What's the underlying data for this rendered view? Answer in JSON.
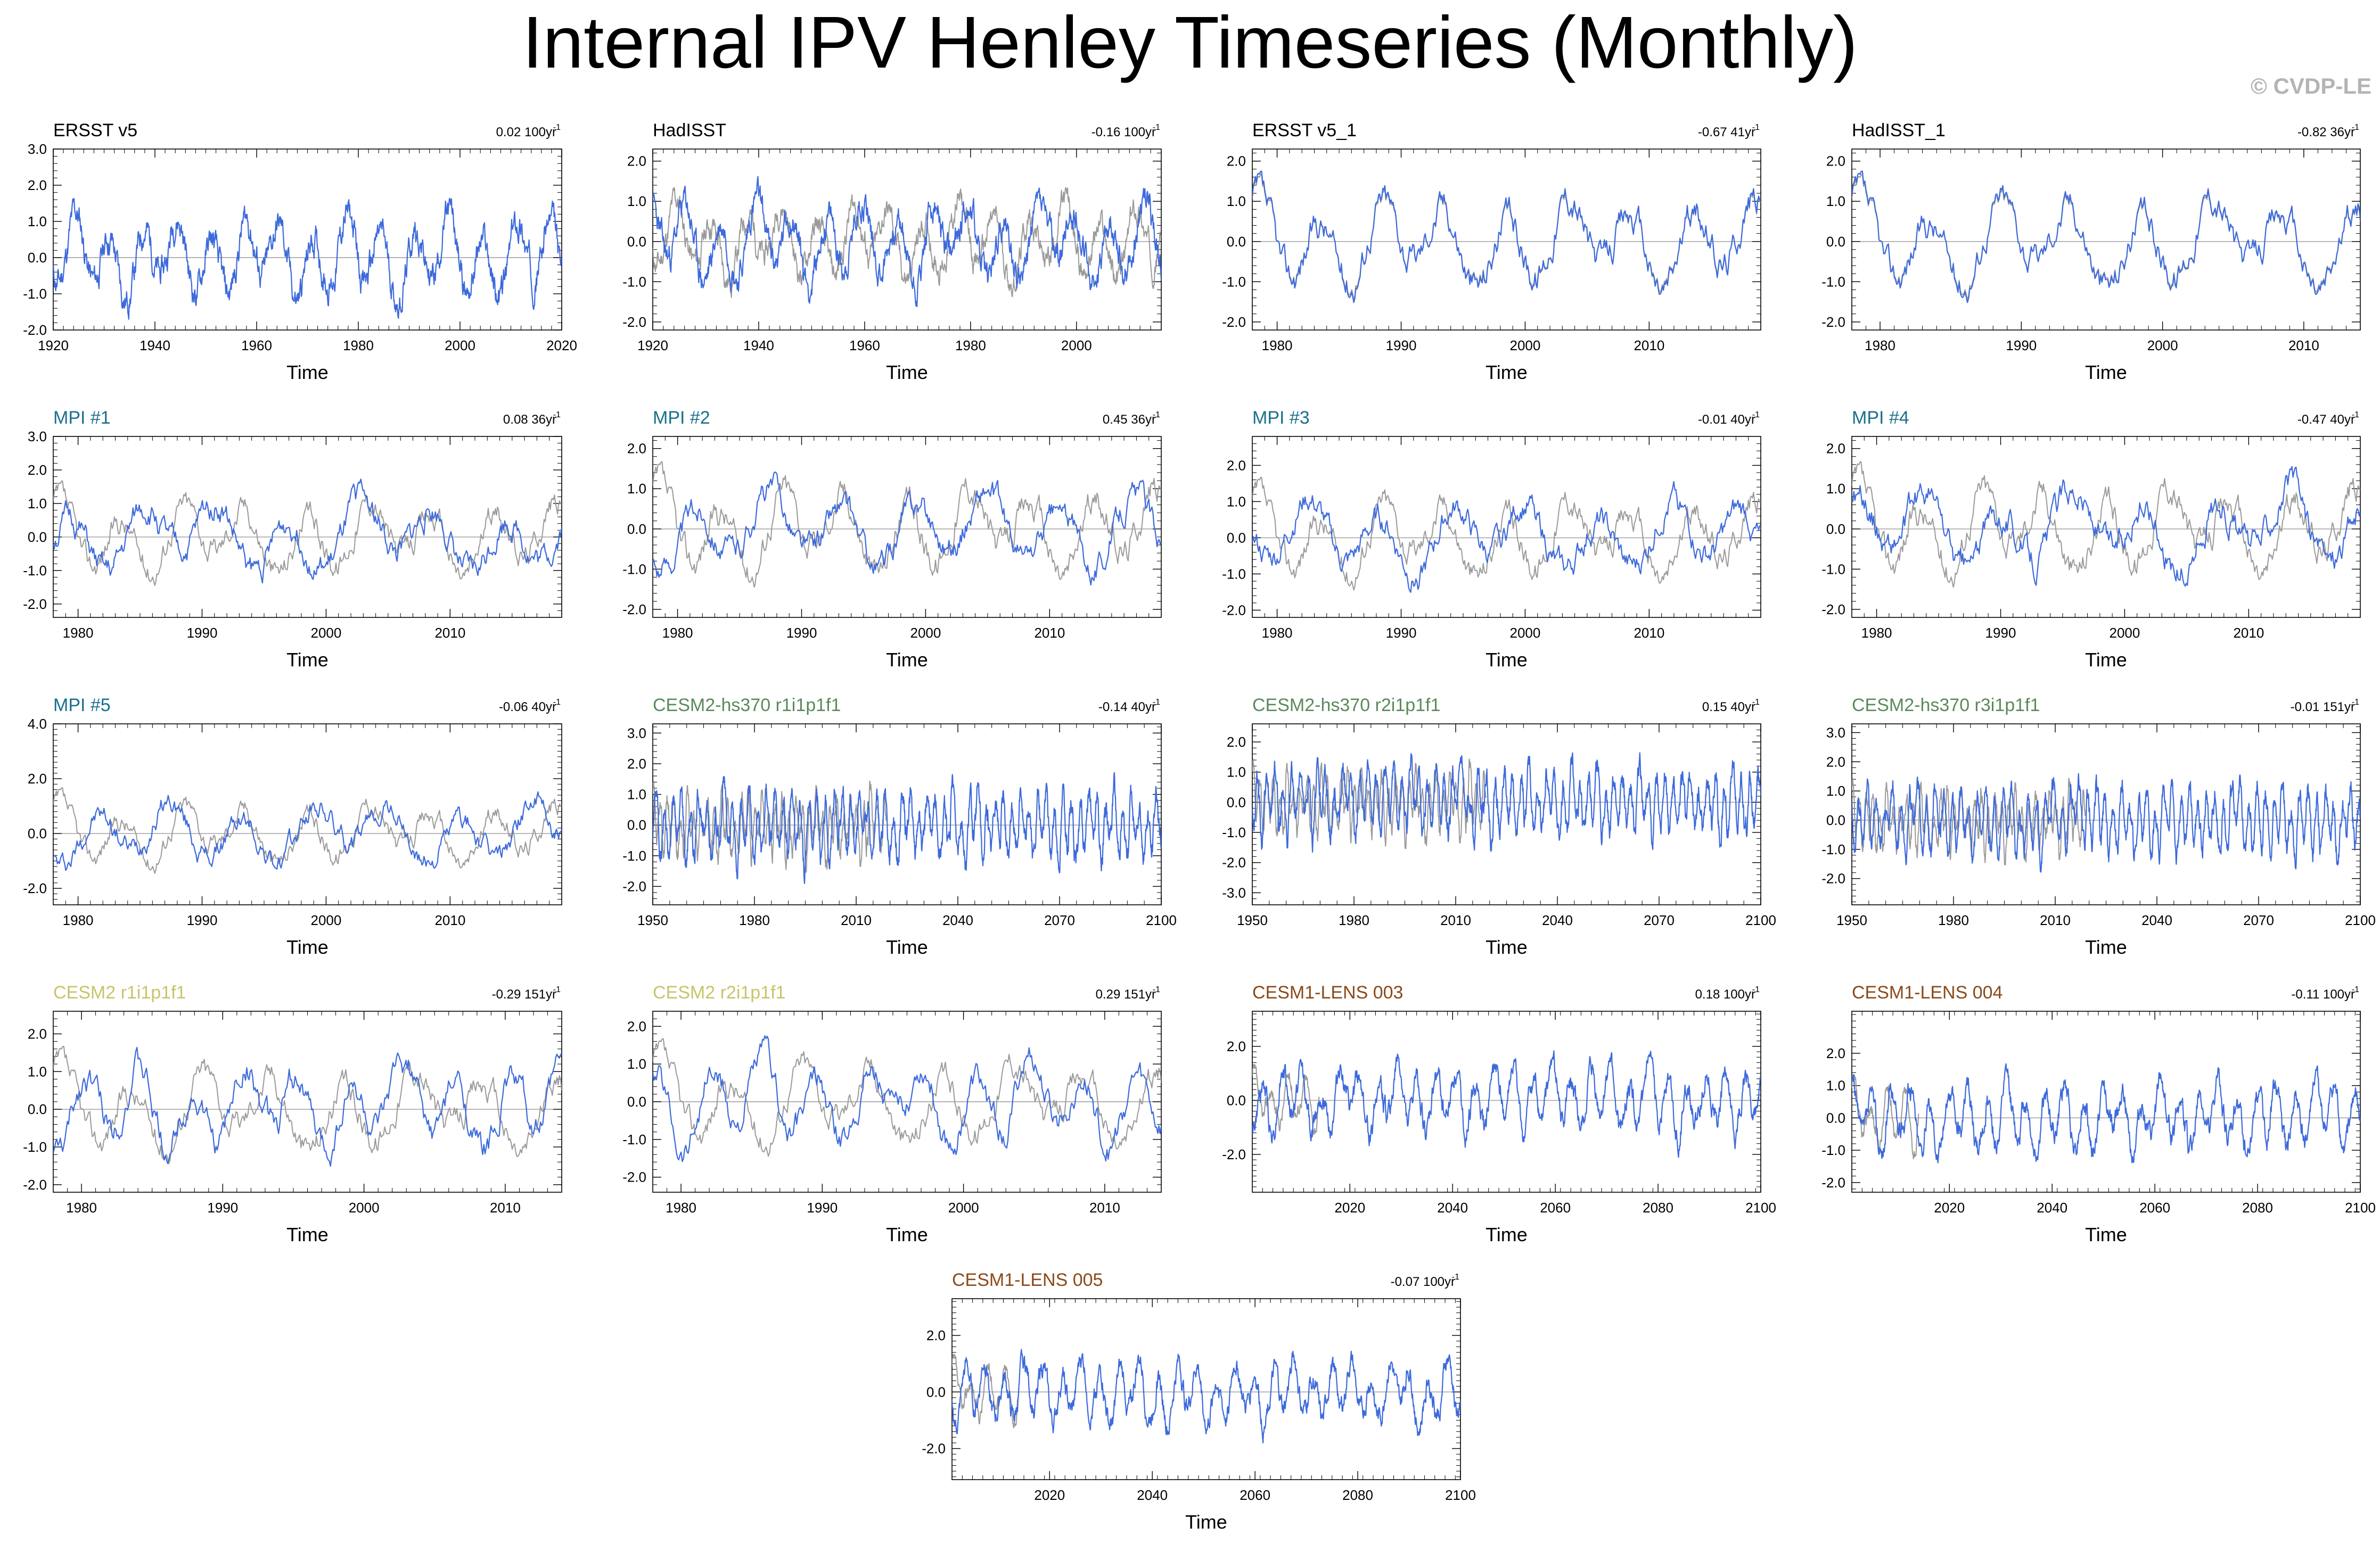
{
  "title": "Internal IPV Henley Timeseries (Monthly)",
  "copyright": "© CVDP-LE",
  "colors": {
    "model": "#3d6adb",
    "obs": "#9a9a9a",
    "zero": "#9a9a9a",
    "obs_title": "#000000",
    "mpi": "#1a6f8c",
    "cesm2hs": "#5a8a5a",
    "cesm2": "#c9c46a",
    "cesm1": "#8a4a1a"
  },
  "chart_data": [
    {
      "type": "line",
      "title": "ERSST v5",
      "title_color": "#000000",
      "trend": "0.02 100yr",
      "trend_sup": "-1",
      "xlabel": "Time",
      "xlim": [
        1920,
        2020
      ],
      "xticks": [
        1920,
        1940,
        1960,
        1980,
        2000,
        2020
      ],
      "ylim": [
        -2.0,
        3.0
      ],
      "yticks": [
        3.0,
        2.0,
        1.0,
        0.0,
        -1.0,
        -2.0
      ],
      "ytick_labels": [
        "3.0",
        "2.0",
        "1.0",
        "0.0",
        "-1.0",
        "-2.0"
      ],
      "x_start": 1920,
      "x_end": 2020,
      "amplitude": 1.1,
      "period_months": 80,
      "seed": 11,
      "obs_overlay": false
    },
    {
      "type": "line",
      "title": "HadISST",
      "title_color": "#000000",
      "trend": "-0.16 100yr",
      "trend_sup": "-1",
      "xlabel": "Time",
      "xlim": [
        1920,
        2016
      ],
      "xticks": [
        1920,
        1940,
        1960,
        1980,
        2000
      ],
      "ylim": [
        -2.2,
        2.3
      ],
      "yticks": [
        2.0,
        1.0,
        0.0,
        -1.0,
        -2.0
      ],
      "ytick_labels": [
        "2.0",
        "1.0",
        "0.0",
        "-1.0",
        "-2.0"
      ],
      "x_start": 1920,
      "x_end": 2016,
      "amplitude": 1.0,
      "period_months": 80,
      "seed": 23,
      "obs_overlay": true,
      "obs_seed": 11,
      "obs_period_months": 80,
      "obs_amplitude": 0.9
    },
    {
      "type": "line",
      "title": "ERSST v5_1",
      "title_color": "#000000",
      "trend": "-0.67 41yr",
      "trend_sup": "-1",
      "xlabel": "Time",
      "xlim": [
        1978,
        2019
      ],
      "xticks": [
        1980,
        1990,
        2000,
        2010
      ],
      "ylim": [
        -2.2,
        2.3
      ],
      "yticks": [
        2.0,
        1.0,
        0.0,
        -1.0,
        -2.0
      ],
      "ytick_labels": [
        "2.0",
        "1.0",
        "0.0",
        "-1.0",
        "-2.0"
      ],
      "x_start": 1978,
      "x_end": 2019,
      "amplitude": 1.1,
      "period_months": 60,
      "seed": 37,
      "obs_overlay": true,
      "obs_seed": 37,
      "obs_period_months": 60,
      "obs_amplitude": 1.05
    },
    {
      "type": "line",
      "title": "HadISST_1",
      "title_color": "#000000",
      "trend": "-0.82 36yr",
      "trend_sup": "-1",
      "xlabel": "Time",
      "xlim": [
        1978,
        2014
      ],
      "xticks": [
        1980,
        1990,
        2000,
        2010
      ],
      "ylim": [
        -2.2,
        2.3
      ],
      "yticks": [
        2.0,
        1.0,
        0.0,
        -1.0,
        -2.0
      ],
      "ytick_labels": [
        "2.0",
        "1.0",
        "0.0",
        "-1.0",
        "-2.0"
      ],
      "x_start": 1978,
      "x_end": 2014,
      "amplitude": 1.1,
      "period_months": 60,
      "seed": 37,
      "obs_overlay": true,
      "obs_seed": 37,
      "obs_period_months": 60,
      "obs_amplitude": 1.05
    },
    {
      "type": "line",
      "title": "MPI #1",
      "title_color": "#1a6f8c",
      "trend": "0.08 36yr",
      "trend_sup": "-1",
      "xlabel": "Time",
      "xlim": [
        1978,
        2019
      ],
      "xticks": [
        1980,
        1990,
        2000,
        2010
      ],
      "ylim": [
        -2.4,
        3.0
      ],
      "yticks": [
        3.0,
        2.0,
        1.0,
        0.0,
        -1.0,
        -2.0
      ],
      "ytick_labels": [
        "3.0",
        "2.0",
        "1.0",
        "0.0",
        "-1.0",
        "-2.0"
      ],
      "x_start": 1978,
      "x_end": 2019,
      "amplitude": 1.1,
      "period_months": 70,
      "seed": 51,
      "obs_overlay": true,
      "obs_seed": 37,
      "obs_period_months": 60,
      "obs_amplitude": 1.05
    },
    {
      "type": "line",
      "title": "MPI #2",
      "title_color": "#1a6f8c",
      "trend": "0.45 36yr",
      "trend_sup": "-1",
      "xlabel": "Time",
      "xlim": [
        1978,
        2019
      ],
      "xticks": [
        1980,
        1990,
        2000,
        2010
      ],
      "ylim": [
        -2.2,
        2.3
      ],
      "yticks": [
        2.0,
        1.0,
        0.0,
        -1.0,
        -2.0
      ],
      "ytick_labels": [
        "2.0",
        "1.0",
        "0.0",
        "-1.0",
        "-2.0"
      ],
      "x_start": 1978,
      "x_end": 2019,
      "amplitude": 0.9,
      "period_months": 70,
      "seed": 63,
      "obs_overlay": true,
      "obs_seed": 37,
      "obs_period_months": 60,
      "obs_amplitude": 1.05
    },
    {
      "type": "line",
      "title": "MPI #3",
      "title_color": "#1a6f8c",
      "trend": "-0.01 40yr",
      "trend_sup": "-1",
      "xlabel": "Time",
      "xlim": [
        1978,
        2019
      ],
      "xticks": [
        1980,
        1990,
        2000,
        2010
      ],
      "ylim": [
        -2.2,
        2.8
      ],
      "yticks": [
        2.0,
        1.0,
        0.0,
        -1.0,
        -2.0
      ],
      "ytick_labels": [
        "2.0",
        "1.0",
        "0.0",
        "-1.0",
        "-2.0"
      ],
      "x_start": 1978,
      "x_end": 2019,
      "amplitude": 1.0,
      "period_months": 70,
      "seed": 77,
      "obs_overlay": true,
      "obs_seed": 37,
      "obs_period_months": 60,
      "obs_amplitude": 1.05
    },
    {
      "type": "line",
      "title": "MPI #4",
      "title_color": "#1a6f8c",
      "trend": "-0.47 40yr",
      "trend_sup": "-1",
      "xlabel": "Time",
      "xlim": [
        1978,
        2019
      ],
      "xticks": [
        1980,
        1990,
        2000,
        2010
      ],
      "ylim": [
        -2.2,
        2.3
      ],
      "yticks": [
        2.0,
        1.0,
        0.0,
        -1.0,
        -2.0
      ],
      "ytick_labels": [
        "2.0",
        "1.0",
        "0.0",
        "-1.0",
        "-2.0"
      ],
      "x_start": 1978,
      "x_end": 2019,
      "amplitude": 1.0,
      "period_months": 70,
      "seed": 89,
      "obs_overlay": true,
      "obs_seed": 37,
      "obs_period_months": 60,
      "obs_amplitude": 1.05
    },
    {
      "type": "line",
      "title": "MPI #5",
      "title_color": "#1a6f8c",
      "trend": "-0.06 40yr",
      "trend_sup": "-1",
      "xlabel": "Time",
      "xlim": [
        1978,
        2019
      ],
      "xticks": [
        1980,
        1990,
        2000,
        2010
      ],
      "ylim": [
        -2.6,
        4.0
      ],
      "yticks": [
        4.0,
        2.0,
        0.0,
        -2.0
      ],
      "ytick_labels": [
        "4.0",
        "2.0",
        "0.0",
        "-2.0"
      ],
      "x_start": 1978,
      "x_end": 2019,
      "amplitude": 1.1,
      "period_months": 70,
      "seed": 97,
      "obs_overlay": true,
      "obs_seed": 37,
      "obs_period_months": 60,
      "obs_amplitude": 1.05
    },
    {
      "type": "line",
      "title": "CESM2-hs370 r1i1p1f1",
      "title_color": "#5a8a5a",
      "trend": "-0.14 40yr",
      "trend_sup": "-1",
      "xlabel": "Time",
      "xlim": [
        1950,
        2100
      ],
      "xticks": [
        1950,
        1980,
        2010,
        2040,
        2070,
        2100
      ],
      "ylim": [
        -2.6,
        3.3
      ],
      "yticks": [
        3.0,
        2.0,
        1.0,
        0.0,
        -1.0,
        -2.0
      ],
      "ytick_labels": [
        "3.0",
        "2.0",
        "1.0",
        "0.0",
        "-1.0",
        "-2.0"
      ],
      "x_start": 1950,
      "x_end": 2100,
      "amplitude": 1.1,
      "period_months": 30,
      "seed": 101,
      "obs_overlay": true,
      "obs_x_end": 2019,
      "obs_seed": 37,
      "obs_period_months": 24,
      "obs_amplitude": 1.0
    },
    {
      "type": "line",
      "title": "CESM2-hs370 r2i1p1f1",
      "title_color": "#5a8a5a",
      "trend": "0.15 40yr",
      "trend_sup": "-1",
      "xlabel": "Time",
      "xlim": [
        1950,
        2100
      ],
      "xticks": [
        1950,
        1980,
        2010,
        2040,
        2070,
        2100
      ],
      "ylim": [
        -3.4,
        2.6
      ],
      "yticks": [
        2.0,
        1.0,
        0.0,
        -1.0,
        -2.0,
        -3.0
      ],
      "ytick_labels": [
        "2.0",
        "1.0",
        "0.0",
        "-1.0",
        "-2.0",
        "-3.0"
      ],
      "x_start": 1950,
      "x_end": 2100,
      "amplitude": 1.1,
      "period_months": 30,
      "seed": 113,
      "obs_overlay": true,
      "obs_x_end": 2019,
      "obs_seed": 37,
      "obs_period_months": 24,
      "obs_amplitude": 1.0
    },
    {
      "type": "line",
      "title": "CESM2-hs370 r3i1p1f1",
      "title_color": "#5a8a5a",
      "trend": "-0.01 151yr",
      "trend_sup": "-1",
      "xlabel": "Time",
      "xlim": [
        1950,
        2100
      ],
      "xticks": [
        1950,
        1980,
        2010,
        2040,
        2070,
        2100
      ],
      "ylim": [
        -2.9,
        3.3
      ],
      "yticks": [
        3.0,
        2.0,
        1.0,
        0.0,
        -1.0,
        -2.0
      ],
      "ytick_labels": [
        "3.0",
        "2.0",
        "1.0",
        "0.0",
        "-1.0",
        "-2.0"
      ],
      "x_start": 1950,
      "x_end": 2100,
      "amplitude": 1.1,
      "period_months": 30,
      "seed": 127,
      "obs_overlay": true,
      "obs_x_end": 2019,
      "obs_seed": 37,
      "obs_period_months": 24,
      "obs_amplitude": 1.0
    },
    {
      "type": "line",
      "title": "CESM2 r1i1p1f1",
      "title_color": "#c9c46a",
      "trend": "-0.29 151yr",
      "trend_sup": "-1",
      "xlabel": "Time",
      "xlim": [
        1978,
        2014
      ],
      "xticks": [
        1980,
        1990,
        2000,
        2010
      ],
      "ylim": [
        -2.2,
        2.6
      ],
      "yticks": [
        2.0,
        1.0,
        0.0,
        -1.0,
        -2.0
      ],
      "ytick_labels": [
        "2.0",
        "1.0",
        "0.0",
        "-1.0",
        "-2.0"
      ],
      "x_start": 1978,
      "x_end": 2014,
      "amplitude": 1.1,
      "period_months": 45,
      "seed": 131,
      "obs_overlay": true,
      "obs_seed": 37,
      "obs_period_months": 60,
      "obs_amplitude": 1.05
    },
    {
      "type": "line",
      "title": "CESM2 r2i1p1f1",
      "title_color": "#c9c46a",
      "trend": "0.29 151yr",
      "trend_sup": "-1",
      "xlabel": "Time",
      "xlim": [
        1978,
        2014
      ],
      "xticks": [
        1980,
        1990,
        2000,
        2010
      ],
      "ylim": [
        -2.4,
        2.4
      ],
      "yticks": [
        2.0,
        1.0,
        0.0,
        -1.0,
        -2.0
      ],
      "ytick_labels": [
        "2.0",
        "1.0",
        "0.0",
        "-1.0",
        "-2.0"
      ],
      "x_start": 1978,
      "x_end": 2014,
      "amplitude": 1.1,
      "period_months": 45,
      "seed": 139,
      "obs_overlay": true,
      "obs_seed": 37,
      "obs_period_months": 60,
      "obs_amplitude": 1.05
    },
    {
      "type": "line",
      "title": "CESM1-LENS 003",
      "title_color": "#8a4a1a",
      "trend": "0.18 100yr",
      "trend_sup": "-1",
      "xlabel": "Time",
      "xlim": [
        2001,
        2100
      ],
      "xticks": [
        2020,
        2040,
        2060,
        2080,
        2100
      ],
      "ylim": [
        -3.4,
        3.3
      ],
      "yticks": [
        2.0,
        0.0,
        -2.0
      ],
      "ytick_labels": [
        "2.0",
        "0.0",
        "-2.0"
      ],
      "x_start": 2001,
      "x_end": 2100,
      "amplitude": 1.2,
      "period_months": 45,
      "seed": 149,
      "obs_overlay": true,
      "obs_x_end": 2014,
      "obs_seed": 37,
      "obs_period_months": 40,
      "obs_amplitude": 0.9
    },
    {
      "type": "line",
      "title": "CESM1-LENS 004",
      "title_color": "#8a4a1a",
      "trend": "-0.11 100yr",
      "trend_sup": "-1",
      "xlabel": "Time",
      "xlim": [
        2001,
        2100
      ],
      "xticks": [
        2020,
        2040,
        2060,
        2080,
        2100
      ],
      "ylim": [
        -2.3,
        3.3
      ],
      "yticks": [
        2.0,
        1.0,
        0.0,
        -1.0,
        -2.0
      ],
      "ytick_labels": [
        "2.0",
        "1.0",
        "0.0",
        "-1.0",
        "-2.0"
      ],
      "x_start": 2001,
      "x_end": 2100,
      "amplitude": 1.0,
      "period_months": 45,
      "seed": 157,
      "obs_overlay": true,
      "obs_x_end": 2014,
      "obs_seed": 37,
      "obs_period_months": 40,
      "obs_amplitude": 0.9
    },
    {
      "type": "line",
      "title": "CESM1-LENS 005",
      "title_color": "#8a4a1a",
      "trend": "-0.07 100yr",
      "trend_sup": "-1",
      "xlabel": "Time",
      "xlim": [
        2001,
        2100
      ],
      "xticks": [
        2020,
        2040,
        2060,
        2080,
        2100
      ],
      "ylim": [
        -3.1,
        3.3
      ],
      "yticks": [
        2.0,
        0.0,
        -2.0
      ],
      "ytick_labels": [
        "2.0",
        "0.0",
        "-2.0"
      ],
      "x_start": 2001,
      "x_end": 2100,
      "amplitude": 1.1,
      "period_months": 45,
      "seed": 163,
      "obs_overlay": true,
      "obs_x_end": 2014,
      "obs_seed": 37,
      "obs_period_months": 40,
      "obs_amplitude": 0.9
    }
  ]
}
